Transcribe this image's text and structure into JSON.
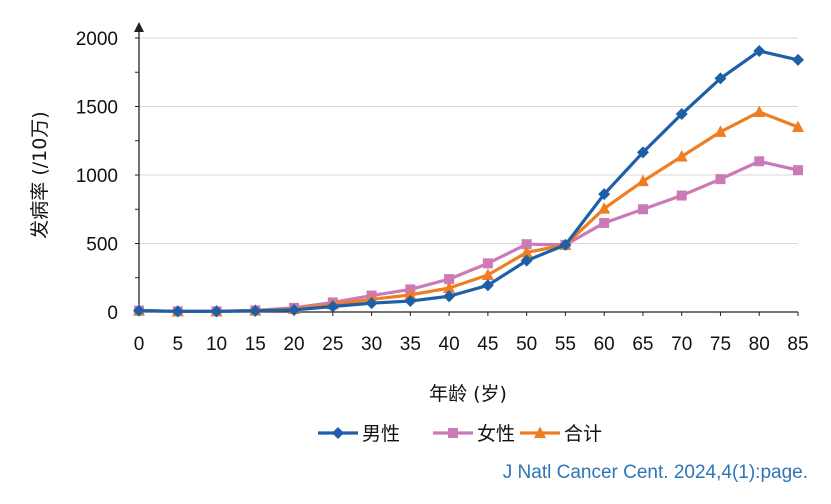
{
  "chart_data": {
    "type": "line",
    "title": "",
    "xlabel": "年龄 (岁)",
    "ylabel": "发病率 (/10万)",
    "categories": [
      "0",
      "5",
      "10",
      "15",
      "20",
      "25",
      "30",
      "35",
      "40",
      "45",
      "50",
      "55",
      "60",
      "65",
      "70",
      "75",
      "80",
      "85"
    ],
    "ylim": [
      0,
      2000
    ],
    "yticks": [
      0,
      500,
      1000,
      1500,
      2000
    ],
    "grid": "horizontal",
    "legend_position": "bottom",
    "series": [
      {
        "name": "男性",
        "color": "#1f5fa8",
        "marker": "diamond",
        "values": [
          10,
          5,
          5,
          8,
          15,
          40,
          65,
          80,
          115,
          195,
          375,
          490,
          860,
          1165,
          1445,
          1705,
          1905,
          1840
        ]
      },
      {
        "name": "女性",
        "color": "#cc79b8",
        "marker": "square",
        "values": [
          10,
          5,
          5,
          12,
          30,
          70,
          120,
          165,
          240,
          355,
          495,
          490,
          650,
          750,
          850,
          970,
          1100,
          1035
        ]
      },
      {
        "name": "合计",
        "color": "#ef7d22",
        "marker": "triangle",
        "values": [
          10,
          5,
          5,
          10,
          22,
          55,
          92,
          125,
          175,
          270,
          435,
          490,
          755,
          955,
          1135,
          1315,
          1460,
          1350
        ]
      }
    ]
  },
  "source": "J Natl Cancer Cent. 2024,4(1):page."
}
